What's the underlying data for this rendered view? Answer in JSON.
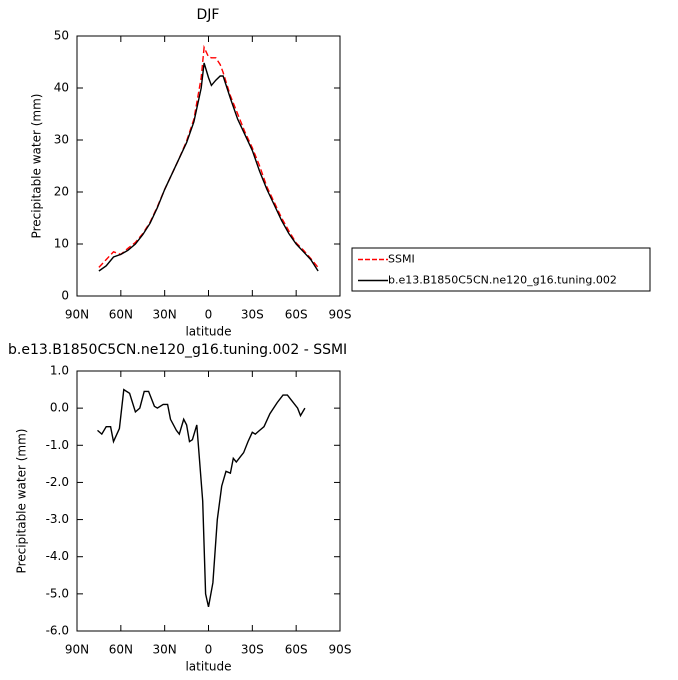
{
  "chart_data": [
    {
      "type": "line",
      "title": "DJF",
      "y_label": "Precipitable water (mm)",
      "x_label": "latitude",
      "x": [
        75,
        70,
        65,
        60,
        55,
        50,
        45,
        40,
        35,
        30,
        25,
        20,
        15,
        10,
        5,
        3,
        0,
        -2,
        -5,
        -8,
        -10,
        -15,
        -20,
        -25,
        -30,
        -35,
        -40,
        -45,
        -50,
        -55,
        -60,
        -65,
        -70,
        -75
      ],
      "series": [
        {
          "name": "SSMI",
          "color": "#ff0000",
          "dash": true,
          "values": [
            5.5,
            7,
            8.5,
            8,
            9.2,
            10.3,
            12,
            14.2,
            17.2,
            20.5,
            23.5,
            26.5,
            29.8,
            34,
            42,
            47.8,
            46,
            45.8,
            45.8,
            44.5,
            43,
            38.5,
            35,
            31.5,
            28.5,
            25,
            21,
            18,
            15,
            12.5,
            10.2,
            8.8,
            7.2,
            5.5
          ]
        },
        {
          "name": "b.e13.B1850C5CN.ne120_g16.tuning.002",
          "color": "#000000",
          "dash": false,
          "values": [
            4.8,
            5.8,
            7.5,
            8,
            8.8,
            10,
            11.8,
            14,
            17,
            20.5,
            23.5,
            26.5,
            29.5,
            33.5,
            40,
            44.8,
            42,
            40.5,
            41.5,
            42.3,
            42.3,
            38,
            34,
            31,
            28,
            24,
            20.5,
            17.5,
            14.5,
            12,
            10,
            8.5,
            7,
            4.8
          ]
        }
      ],
      "xlim": [
        90,
        -90
      ],
      "xticks": [
        {
          "value": 90,
          "label": "90N"
        },
        {
          "value": 60,
          "label": "60N"
        },
        {
          "value": 30,
          "label": "30N"
        },
        0,
        {
          "value": -30,
          "label": "30S"
        },
        {
          "value": -60,
          "label": "60S"
        },
        {
          "value": -90,
          "label": "90S"
        }
      ],
      "ylim": [
        0,
        50
      ],
      "yticks": [
        0,
        10,
        20,
        30,
        40,
        50
      ],
      "legend": "right"
    },
    {
      "type": "line",
      "title": "b.e13.B1850C5CN.ne120_g16.tuning.002 - SSMI",
      "y_label": "Precipitable water (mm)",
      "x_label": "latitude",
      "x": [
        76,
        73,
        70,
        67,
        65,
        61,
        58,
        54,
        50,
        47,
        44,
        41,
        37,
        35,
        31,
        28,
        26,
        22,
        20,
        17,
        15,
        13,
        11,
        8,
        4,
        2,
        0,
        -3,
        -6,
        -9,
        -12,
        -15,
        -17,
        -19,
        -22,
        -24,
        -27,
        -30,
        -32,
        -35,
        -38,
        -42,
        -47,
        -51,
        -54,
        -57,
        -61,
        -63,
        -66
      ],
      "series": [
        {
          "name": "b.e13.B1850C5CN.ne120_g16.tuning.002 - SSMI",
          "color": "#000000",
          "dash": false,
          "values": [
            -0.6,
            -0.7,
            -0.5,
            -0.5,
            -0.9,
            -0.55,
            0.5,
            0.4,
            -0.1,
            0,
            0.45,
            0.45,
            0.05,
            0,
            0.1,
            0.1,
            -0.3,
            -0.6,
            -0.7,
            -0.3,
            -0.45,
            -0.9,
            -0.85,
            -0.45,
            -2.5,
            -5.0,
            -5.35,
            -4.7,
            -3.0,
            -2.1,
            -1.7,
            -1.75,
            -1.35,
            -1.45,
            -1.3,
            -1.2,
            -0.9,
            -0.65,
            -0.7,
            -0.6,
            -0.5,
            -0.15,
            0.15,
            0.35,
            0.35,
            0.2,
            0,
            -0.2,
            0
          ]
        }
      ],
      "xlim": [
        90,
        -90
      ],
      "xticks": [
        {
          "value": 90,
          "label": "90N"
        },
        {
          "value": 60,
          "label": "60N"
        },
        {
          "value": 30,
          "label": "30N"
        },
        0,
        {
          "value": -30,
          "label": "30S"
        },
        {
          "value": -60,
          "label": "60S"
        },
        {
          "value": -90,
          "label": "90S"
        }
      ],
      "ylim": [
        -6,
        1
      ],
      "yticks": [
        {
          "value": 1,
          "label": "1.0"
        },
        {
          "value": 0,
          "label": "0.0"
        },
        {
          "value": -1,
          "label": "-1.0"
        },
        {
          "value": -2,
          "label": "-2.0"
        },
        {
          "value": -3,
          "label": "-3.0"
        },
        {
          "value": -4,
          "label": "-4.0"
        },
        {
          "value": -5,
          "label": "-5.0"
        },
        {
          "value": -6,
          "label": "-6.0"
        }
      ]
    }
  ]
}
